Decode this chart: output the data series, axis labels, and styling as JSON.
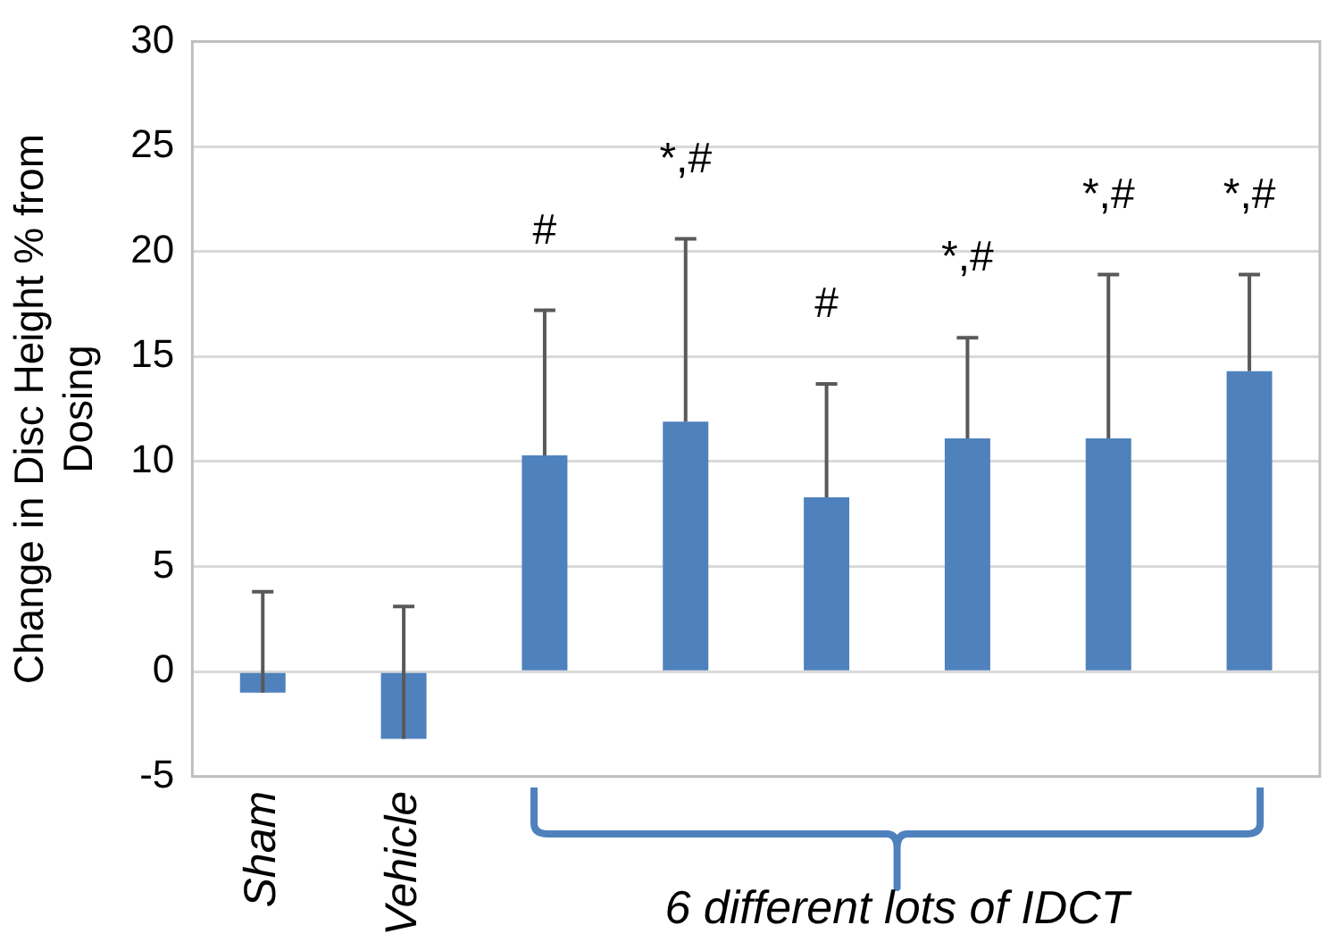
{
  "chart_data": {
    "type": "bar",
    "ylabel": "Change in Disc Height % from Dosing",
    "categories": [
      "Sham",
      "Vehicle",
      null,
      null,
      null,
      null,
      null,
      null
    ],
    "values": [
      -1.0,
      -3.2,
      10.3,
      11.9,
      8.3,
      11.1,
      11.1,
      14.3
    ],
    "errors": [
      [
        -1.0,
        3.8
      ],
      [
        -3.2,
        3.1
      ],
      [
        10.3,
        17.2
      ],
      [
        11.9,
        20.6
      ],
      [
        8.3,
        13.7
      ],
      [
        11.1,
        15.9
      ],
      [
        11.1,
        18.9
      ],
      [
        14.3,
        18.9
      ]
    ],
    "color": "#4f81bd",
    "ylim": [
      -5,
      30
    ],
    "yticks": [
      -5,
      0,
      5,
      10,
      15,
      20,
      25,
      30
    ],
    "grid": "y",
    "legend": false,
    "annotations": [
      "#",
      "*,#",
      "#",
      "*,#",
      "*,#",
      "*,#",
      "6 different lots of IDCT"
    ]
  }
}
